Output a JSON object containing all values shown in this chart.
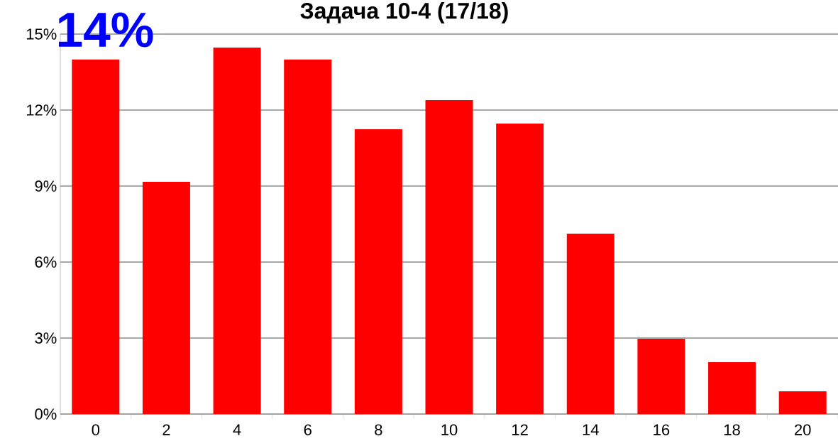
{
  "chart_data": {
    "type": "bar",
    "title": "Задача 10-4 (17/18)",
    "categories": [
      "0",
      "2",
      "4",
      "6",
      "8",
      "10",
      "12",
      "14",
      "16",
      "18",
      "20"
    ],
    "values": [
      14.0,
      9.17,
      14.47,
      14.0,
      11.24,
      12.39,
      11.47,
      7.12,
      2.97,
      2.05,
      0.9
    ],
    "color": "#ff0000",
    "ylim": [
      0,
      15
    ],
    "yticks": [
      {
        "value": 0,
        "label": "0%"
      },
      {
        "value": 3,
        "label": "3%"
      },
      {
        "value": 6,
        "label": "6%"
      },
      {
        "value": 9,
        "label": "9%"
      },
      {
        "value": 12,
        "label": "12%"
      },
      {
        "value": 15,
        "label": "15%"
      }
    ],
    "grid": "y",
    "annotations": [
      "14%"
    ]
  }
}
